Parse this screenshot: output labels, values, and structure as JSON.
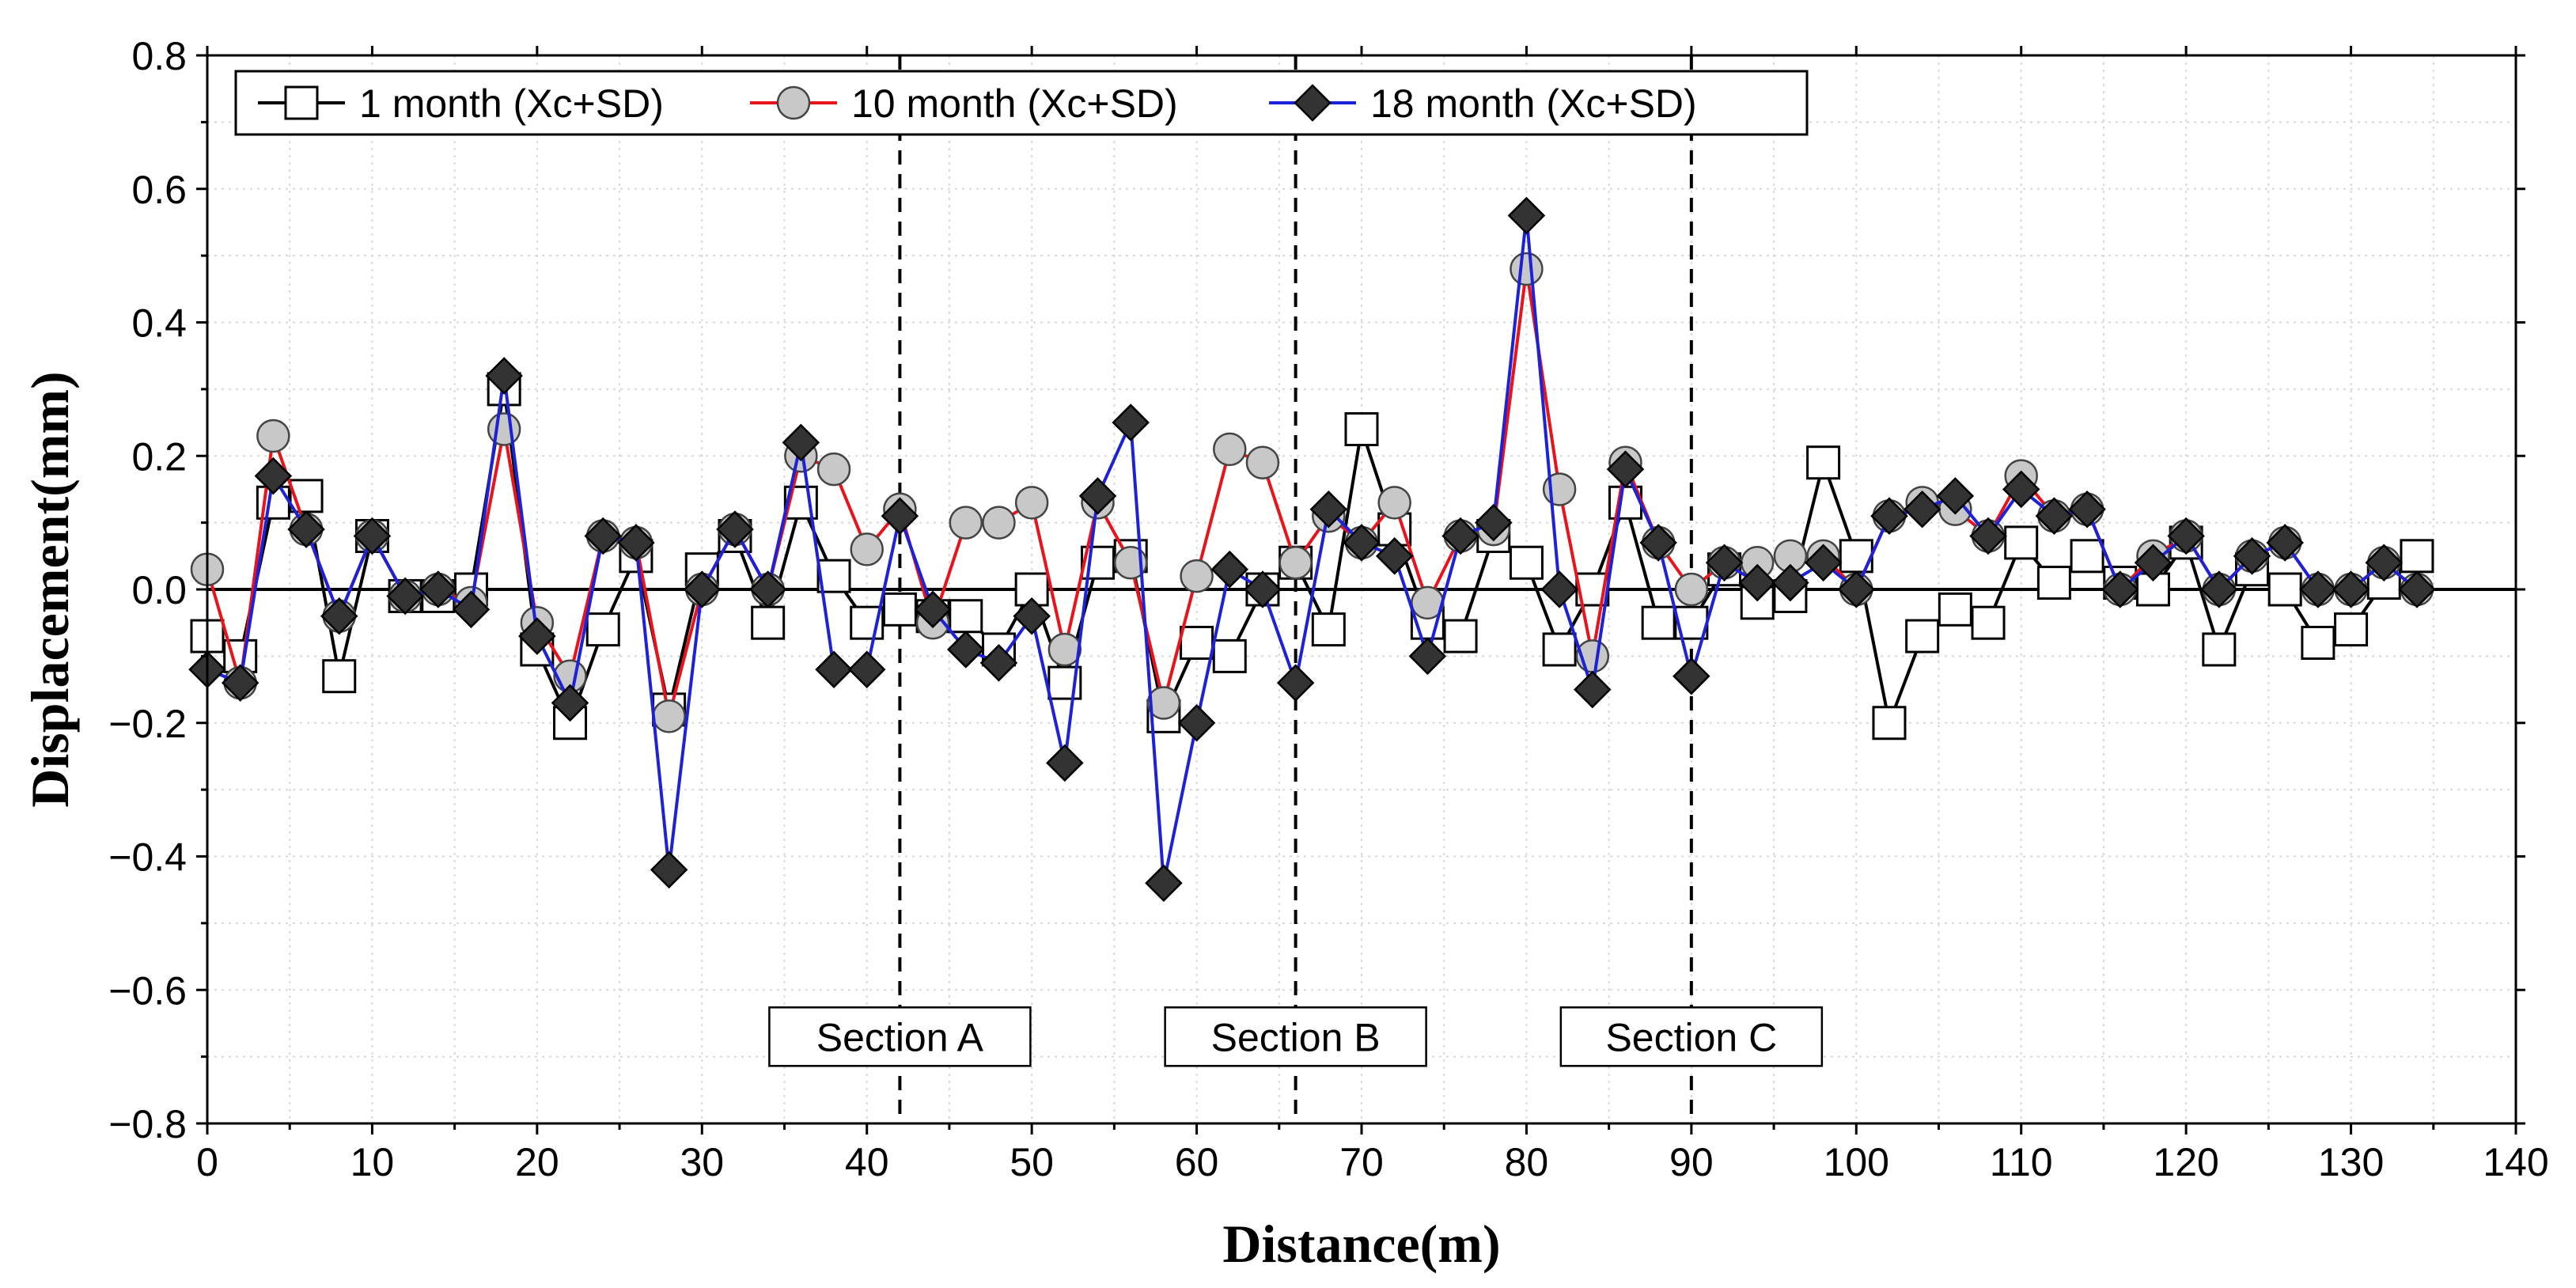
{
  "chart_data": {
    "type": "line",
    "xlabel": "Distance(m)",
    "ylabel": "Displacement(mm)",
    "xlim": [
      0,
      140
    ],
    "ylim": [
      -0.8,
      0.8
    ],
    "xticks": [
      0,
      10,
      20,
      30,
      40,
      50,
      60,
      70,
      80,
      90,
      100,
      110,
      120,
      130,
      140
    ],
    "yticks": [
      0.8,
      0.6,
      0.4,
      0.2,
      0.0,
      -0.2,
      -0.4,
      -0.6,
      -0.8
    ],
    "ytick_labels": [
      "0.8",
      "0.6",
      "0.4",
      "0.2",
      "0.0",
      "−0.2",
      "−0.4",
      "−0.6",
      "−0.8"
    ],
    "grid": true,
    "legend_position": "top-left",
    "series": [
      {
        "name": "1 month (Xc+SD)",
        "color": "#000000",
        "marker": "open-square",
        "x": [
          0,
          2,
          4,
          6,
          8,
          10,
          12,
          14,
          16,
          18,
          20,
          22,
          24,
          26,
          28,
          30,
          32,
          34,
          36,
          38,
          40,
          42,
          44,
          46,
          48,
          50,
          52,
          54,
          56,
          58,
          60,
          62,
          64,
          66,
          68,
          70,
          72,
          74,
          76,
          78,
          80,
          82,
          84,
          86,
          88,
          90,
          92,
          94,
          96,
          98,
          100,
          102,
          104,
          106,
          108,
          110,
          112,
          114,
          116,
          118,
          120,
          122,
          124,
          126,
          128,
          130,
          132,
          134
        ],
        "values": [
          -0.07,
          -0.1,
          0.13,
          0.14,
          -0.13,
          0.08,
          -0.01,
          -0.01,
          0.0,
          0.3,
          -0.09,
          -0.2,
          -0.06,
          0.05,
          -0.18,
          0.03,
          0.08,
          -0.05,
          0.13,
          0.02,
          -0.05,
          -0.03,
          -0.04,
          -0.04,
          -0.09,
          0.0,
          -0.14,
          0.04,
          0.05,
          -0.19,
          -0.08,
          -0.1,
          0.0,
          0.04,
          -0.06,
          0.24,
          0.09,
          -0.05,
          -0.07,
          0.08,
          0.04,
          -0.09,
          0.0,
          0.13,
          -0.05,
          -0.05,
          0.03,
          -0.02,
          -0.01,
          0.19,
          0.05,
          -0.2,
          -0.07,
          -0.03,
          -0.05,
          0.07,
          0.01,
          0.05,
          0.01,
          0.0,
          0.07,
          -0.09,
          0.03,
          0.0,
          -0.08,
          -0.06,
          0.01,
          0.05
        ]
      },
      {
        "name": "10 month (Xc+SD)",
        "color": "#e8131b",
        "marker": "gray-circle",
        "x": [
          0,
          2,
          4,
          6,
          8,
          10,
          12,
          14,
          16,
          18,
          20,
          22,
          24,
          26,
          28,
          30,
          32,
          34,
          36,
          38,
          40,
          42,
          44,
          46,
          48,
          50,
          52,
          54,
          56,
          58,
          60,
          62,
          64,
          66,
          68,
          70,
          72,
          74,
          76,
          78,
          80,
          82,
          84,
          86,
          88,
          90,
          92,
          94,
          96,
          98,
          100,
          102,
          104,
          106,
          108,
          110,
          112,
          114,
          116,
          118,
          120,
          122,
          124,
          126,
          128,
          130,
          132,
          134
        ],
        "values": [
          0.03,
          -0.14,
          0.23,
          0.09,
          -0.04,
          0.08,
          -0.01,
          0.0,
          -0.02,
          0.24,
          -0.05,
          -0.13,
          0.08,
          0.07,
          -0.19,
          0.0,
          0.09,
          0.0,
          0.2,
          0.18,
          0.06,
          0.12,
          -0.05,
          0.1,
          0.1,
          0.13,
          -0.09,
          0.13,
          0.04,
          -0.17,
          0.02,
          0.21,
          0.19,
          0.04,
          0.11,
          0.07,
          0.13,
          -0.02,
          0.08,
          0.09,
          0.48,
          0.15,
          -0.1,
          0.19,
          0.07,
          0.0,
          0.04,
          0.04,
          0.05,
          0.05,
          0.0,
          0.11,
          0.13,
          0.12,
          0.08,
          0.17,
          0.11,
          0.12,
          0.0,
          0.05,
          0.08,
          0.0,
          0.05,
          0.07,
          0.0,
          0.0,
          0.04,
          0.0
        ]
      },
      {
        "name": "18 month (Xc+SD)",
        "color": "#1e22d6",
        "marker": "filled-diamond",
        "x": [
          0,
          2,
          4,
          6,
          8,
          10,
          12,
          14,
          16,
          18,
          20,
          22,
          24,
          26,
          28,
          30,
          32,
          34,
          36,
          38,
          40,
          42,
          44,
          46,
          48,
          50,
          52,
          54,
          56,
          58,
          60,
          62,
          64,
          66,
          68,
          70,
          72,
          74,
          76,
          78,
          80,
          82,
          84,
          86,
          88,
          90,
          92,
          94,
          96,
          98,
          100,
          102,
          104,
          106,
          108,
          110,
          112,
          114,
          116,
          118,
          120,
          122,
          124,
          126,
          128,
          130,
          132,
          134
        ],
        "values": [
          -0.12,
          -0.14,
          0.17,
          0.09,
          -0.04,
          0.08,
          -0.01,
          0.0,
          -0.03,
          0.32,
          -0.07,
          -0.17,
          0.08,
          0.07,
          -0.42,
          0.0,
          0.09,
          0.0,
          0.22,
          -0.12,
          -0.12,
          0.11,
          -0.03,
          -0.09,
          -0.11,
          -0.04,
          -0.26,
          0.14,
          0.25,
          -0.44,
          -0.2,
          0.03,
          0.0,
          -0.14,
          0.12,
          0.07,
          0.05,
          -0.1,
          0.08,
          0.1,
          0.56,
          0.0,
          -0.15,
          0.18,
          0.07,
          -0.13,
          0.04,
          0.01,
          0.01,
          0.04,
          0.0,
          0.11,
          0.12,
          0.14,
          0.08,
          0.15,
          0.11,
          0.12,
          0.0,
          0.04,
          0.08,
          0.0,
          0.05,
          0.07,
          0.0,
          0.0,
          0.04,
          0.0
        ]
      }
    ],
    "vlines": [
      42,
      66,
      90
    ],
    "annotations": [
      {
        "text": "Section A",
        "x": 42
      },
      {
        "text": "Section B",
        "x": 66
      },
      {
        "text": "Section C",
        "x": 90
      }
    ],
    "annotation_y": -0.67,
    "zero_line": 0
  }
}
